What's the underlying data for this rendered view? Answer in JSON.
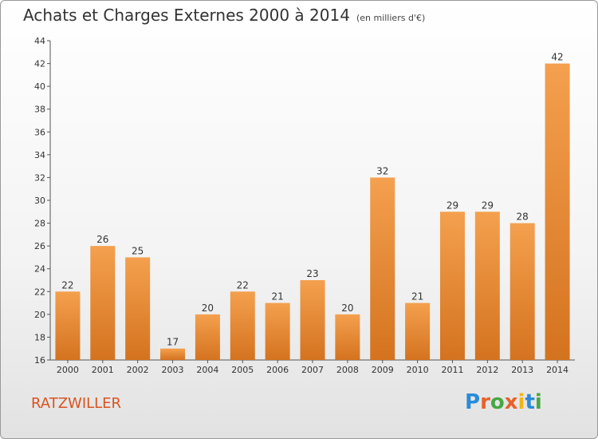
{
  "chart_data": {
    "type": "bar",
    "title": "Achats et Charges Externes 2000 à 2014",
    "subtitle": "(en milliers d'€)",
    "categories": [
      "2000",
      "2001",
      "2002",
      "2003",
      "2004",
      "2005",
      "2006",
      "2007",
      "2008",
      "2009",
      "2010",
      "2011",
      "2012",
      "2013",
      "2014"
    ],
    "values": [
      22,
      26,
      25,
      17,
      20,
      22,
      21,
      23,
      20,
      32,
      21,
      29,
      29,
      28,
      42
    ],
    "ylim": [
      16,
      44
    ],
    "yticks": [
      16,
      18,
      20,
      22,
      24,
      26,
      28,
      30,
      32,
      34,
      36,
      38,
      40,
      42,
      44
    ],
    "grid": false,
    "bar_color_top": "#f4a04e",
    "bar_color_bottom": "#d4731f"
  },
  "footer": {
    "commune": "RATZWILLER",
    "logo": "Proxiti",
    "logo_colors": [
      "#2a8bd6",
      "#e8612a",
      "#46a843",
      "#e8612a",
      "#f1b418",
      "#2a8bd6",
      "#46a843"
    ]
  }
}
